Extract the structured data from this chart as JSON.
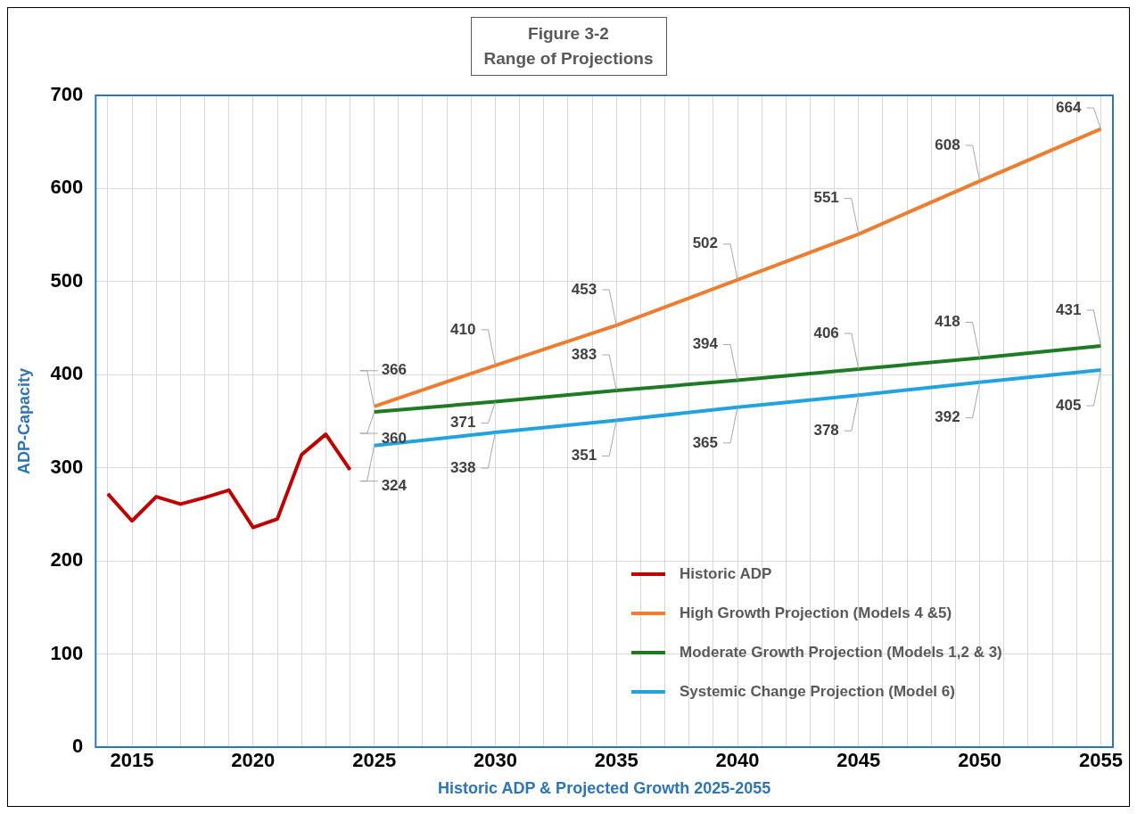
{
  "chart_data": {
    "type": "line",
    "title": "Figure 3-2",
    "subtitle": "Range of Projections",
    "xlabel": "Historic ADP & Projected Growth 2025-2055",
    "ylabel": "ADP-Capacity",
    "xlim": [
      2013.5,
      2055.5
    ],
    "xticks": [
      {
        "value": 2014,
        "label": null
      },
      2015,
      {
        "value": 2016,
        "label": null
      },
      {
        "value": 2017,
        "label": null
      },
      {
        "value": 2018,
        "label": null
      },
      {
        "value": 2019,
        "label": null
      },
      2020,
      {
        "value": 2021,
        "label": null
      },
      {
        "value": 2022,
        "label": null
      },
      {
        "value": 2023,
        "label": null
      },
      {
        "value": 2024,
        "label": null
      },
      2025,
      {
        "value": 2026,
        "label": null
      },
      {
        "value": 2027,
        "label": null
      },
      {
        "value": 2028,
        "label": null
      },
      {
        "value": 2029,
        "label": null
      },
      2030,
      {
        "value": 2031,
        "label": null
      },
      {
        "value": 2032,
        "label": null
      },
      {
        "value": 2033,
        "label": null
      },
      {
        "value": 2034,
        "label": null
      },
      2035,
      {
        "value": 2036,
        "label": null
      },
      {
        "value": 2037,
        "label": null
      },
      {
        "value": 2038,
        "label": null
      },
      {
        "value": 2039,
        "label": null
      },
      2040,
      {
        "value": 2041,
        "label": null
      },
      {
        "value": 2042,
        "label": null
      },
      {
        "value": 2043,
        "label": null
      },
      {
        "value": 2044,
        "label": null
      },
      2045,
      {
        "value": 2046,
        "label": null
      },
      {
        "value": 2047,
        "label": null
      },
      {
        "value": 2048,
        "label": null
      },
      {
        "value": 2049,
        "label": null
      },
      2050,
      {
        "value": 2051,
        "label": null
      },
      {
        "value": 2052,
        "label": null
      },
      {
        "value": 2053,
        "label": null
      },
      {
        "value": 2054,
        "label": null
      },
      2055
    ],
    "ylim": [
      0,
      700
    ],
    "yticks": [
      0,
      100,
      200,
      300,
      400,
      500,
      600,
      700
    ],
    "grid": true,
    "legend": "bottom right",
    "marker": "none",
    "line_style": "solid",
    "series": [
      {
        "name": "Historic ADP",
        "color": "#c00000",
        "x": [
          2014,
          2015,
          2016,
          2017,
          2018,
          2019,
          2020,
          2021,
          2022,
          2023,
          2024
        ],
        "values": [
          272,
          243,
          269,
          261,
          268,
          276,
          236,
          245,
          314,
          336,
          298
        ]
      },
      {
        "name": "High Growth Projection (Models 4 &5)",
        "color": "#ed7d31",
        "x": [
          2025,
          2030,
          2035,
          2040,
          2045,
          2050,
          2055
        ],
        "values": [
          366,
          410,
          453,
          502,
          551,
          608,
          664
        ],
        "value_labels": [
          "366",
          "410",
          "453",
          "502",
          "551",
          "608",
          "664"
        ]
      },
      {
        "name": "Moderate Growth Projection (Models 1,2 & 3)",
        "color": "#1e7b24",
        "x": [
          2025,
          2030,
          2035,
          2040,
          2045,
          2050,
          2055
        ],
        "values": [
          360,
          371,
          383,
          394,
          406,
          418,
          431
        ],
        "value_labels": [
          "360",
          "371",
          "383",
          "394",
          "406",
          "418",
          "431"
        ]
      },
      {
        "name": "Systemic Change Projection (Model 6)",
        "color": "#22a3dd",
        "x": [
          2025,
          2030,
          2035,
          2040,
          2045,
          2050,
          2055
        ],
        "values": [
          324,
          338,
          351,
          365,
          378,
          392,
          405
        ],
        "value_labels": [
          "324",
          "338",
          "351",
          "365",
          "378",
          "392",
          "405"
        ]
      }
    ]
  }
}
